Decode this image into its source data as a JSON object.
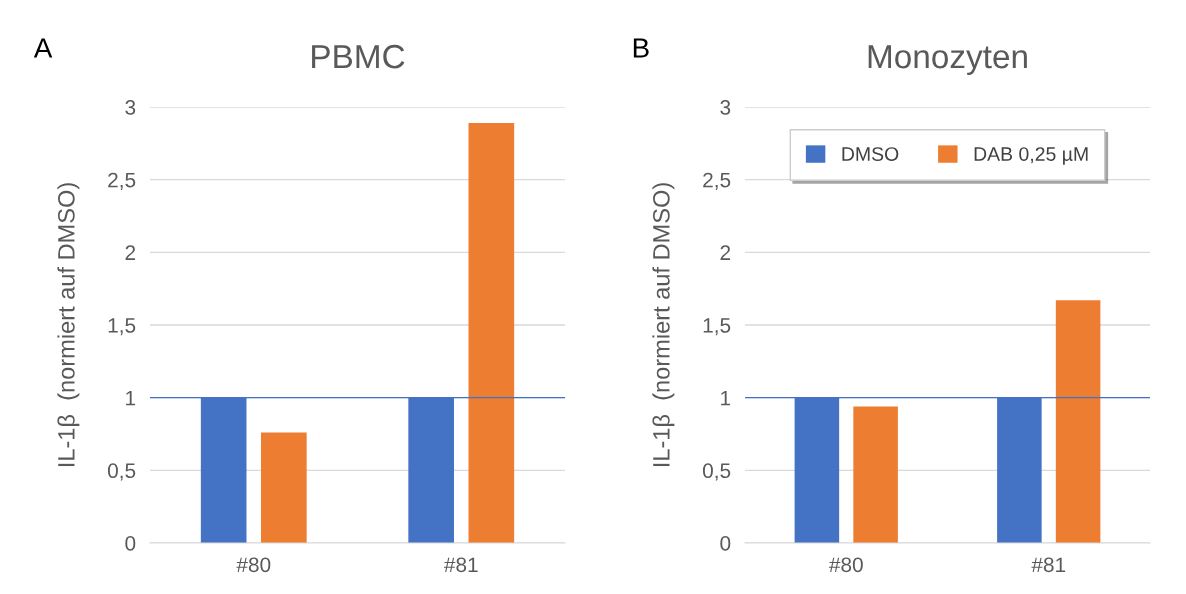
{
  "chart_data": [
    {
      "type": "bar",
      "title": "PBMC",
      "ylabel": "IL-1β  (normiert auf DMSO)",
      "annotations": [
        "A"
      ],
      "categories": [
        "#80",
        "#81"
      ],
      "series": [
        {
          "color": "#4472c4",
          "values": [
            1,
            1
          ]
        },
        {
          "color": "#ed7d31",
          "values": [
            0.76,
            2.89
          ]
        }
      ],
      "ylim": [
        0,
        3
      ],
      "yticks": [
        0,
        {
          "value": 0.5,
          "label": "0,5"
        },
        1,
        {
          "value": 1.5,
          "label": "1,5"
        },
        2,
        {
          "value": 2.5,
          "label": "2,5"
        },
        3
      ],
      "ref_lines": [
        {
          "axis": "y",
          "value": 1,
          "color": "#4472c4"
        }
      ],
      "grid": "y",
      "legend": false
    },
    {
      "type": "bar",
      "title": "Monozyten",
      "ylabel": "IL-1β  (normiert auf DMSO)",
      "annotations": [
        "B"
      ],
      "categories": [
        "#80",
        "#81"
      ],
      "series": [
        {
          "name": "DMSO",
          "color": "#4472c4",
          "values": [
            1,
            1
          ]
        },
        {
          "name": "DAB 0,25 µM",
          "color": "#ed7d31",
          "values": [
            0.94,
            1.67
          ]
        }
      ],
      "ylim": [
        0,
        3
      ],
      "yticks": [
        0,
        {
          "value": 0.5,
          "label": "0,5"
        },
        1,
        {
          "value": 1.5,
          "label": "1,5"
        },
        2,
        {
          "value": 2.5,
          "label": "2,5"
        },
        3
      ],
      "ref_lines": [
        {
          "axis": "y",
          "value": 1,
          "color": "#4472c4"
        }
      ],
      "grid": "y",
      "legend": "top"
    }
  ]
}
